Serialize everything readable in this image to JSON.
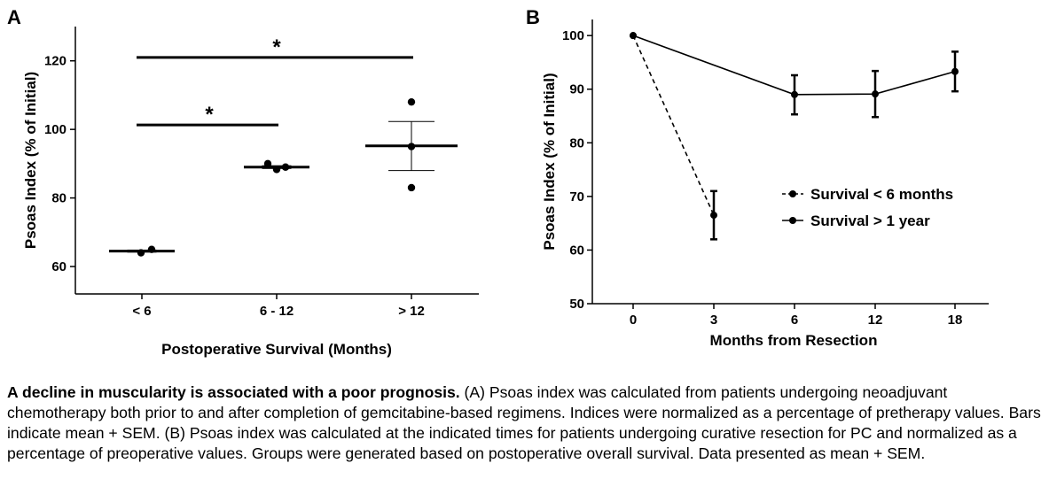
{
  "figure": {
    "panel_a_label": "A",
    "panel_b_label": "B",
    "caption_title": "A decline in muscularity is associated with a poor prognosis.",
    "caption_body": " (A) Psoas index was calculated from patients undergoing neoadjuvant chemotherapy both prior to and after completion of gemcitabine-based regimens. Indices were normalized as a percentage of pretherapy values. Bars indicate mean + SEM. (B) Psoas index was calculated at the indicated times for patients undergoing curative resection for PC and normalized as a percentage of preoperative values. Groups were generated based on postoperative overall survival. Data presented as mean + SEM."
  },
  "chart_data": [
    {
      "panel": "A",
      "type": "scatter",
      "xlabel": "Postoperative Survival (Months)",
      "ylabel": "Psoas Index (% of Initial)",
      "categories": [
        "< 6",
        "6 - 12",
        "> 12"
      ],
      "yticks": [
        60,
        80,
        100,
        120
      ],
      "ylim": [
        52,
        130
      ],
      "grid": false,
      "points": [
        {
          "category": "< 6",
          "values": [
            64,
            65
          ]
        },
        {
          "category": "6 - 12",
          "values": [
            90,
            88.3,
            89
          ]
        },
        {
          "category": "> 12",
          "values": [
            108,
            95,
            83
          ]
        }
      ],
      "summary": [
        {
          "category": "< 6",
          "mean": 64.5,
          "sem_low": 64.2,
          "sem_high": 64.8
        },
        {
          "category": "6 - 12",
          "mean": 89,
          "sem_low": 88.6,
          "sem_high": 89.4
        },
        {
          "category": "> 12",
          "mean": 95.2,
          "sem_low": 88,
          "sem_high": 102.3
        }
      ],
      "significance": [
        {
          "from": "< 6",
          "to": "6 - 12",
          "y": 101.3,
          "label": "*"
        },
        {
          "from": "< 6",
          "to": "> 12",
          "y": 121,
          "label": "*"
        }
      ]
    },
    {
      "panel": "B",
      "type": "line",
      "xlabel": "Months from Resection",
      "ylabel": "Psoas Index (% of Initial)",
      "x": [
        0,
        3,
        6,
        12,
        18
      ],
      "ylim": [
        50,
        103
      ],
      "yticks": [
        50,
        60,
        70,
        80,
        90,
        100
      ],
      "grid": false,
      "legend_position": "center-right",
      "series": [
        {
          "name": "Survival < 6 months",
          "style": "dashed",
          "x": [
            0,
            3
          ],
          "y": [
            100,
            66.5
          ],
          "err_low": [
            null,
            62
          ],
          "err_high": [
            null,
            71
          ]
        },
        {
          "name": "Survival > 1 year",
          "style": "solid",
          "x": [
            0,
            6,
            12,
            18
          ],
          "y": [
            100,
            89,
            89.1,
            93.3
          ],
          "err_low": [
            null,
            85.3,
            84.8,
            89.6
          ],
          "err_high": [
            null,
            92.6,
            93.4,
            97
          ]
        }
      ]
    }
  ]
}
